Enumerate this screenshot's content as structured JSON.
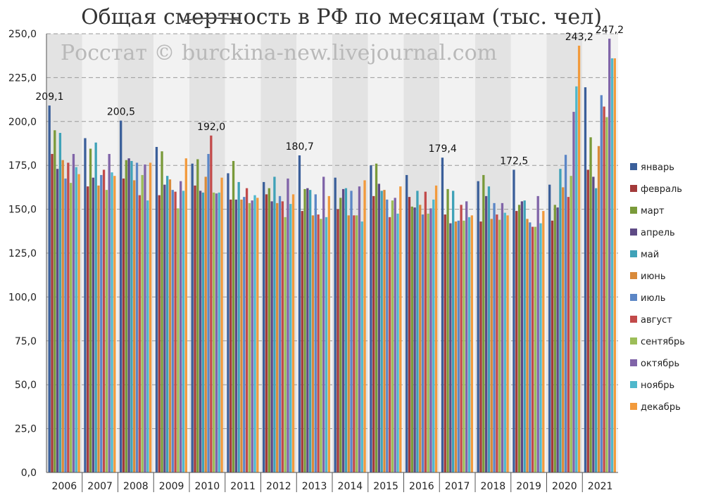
{
  "chart_data": {
    "type": "bar",
    "title": "Общая смертность в РФ по месяцам (тыс. чел)",
    "watermark": "Росстат © burckina-new.livejournal.com",
    "categories": [
      "2006",
      "2007",
      "2008",
      "2009",
      "2010",
      "2011",
      "2012",
      "2013",
      "2014",
      "2015",
      "2016",
      "2017",
      "2018",
      "2019",
      "2020",
      "2021"
    ],
    "ylim": [
      0,
      250
    ],
    "yticks": [
      "0,0",
      "25,0",
      "50,0",
      "75,0",
      "100,0",
      "125,0",
      "150,0",
      "175,0",
      "200,0",
      "225,0",
      "250,0"
    ],
    "grid": true,
    "legend_position": "right",
    "series": [
      {
        "name": "январь",
        "color": "#3b5f9a",
        "values": [
          209.1,
          190.5,
          200.5,
          185.5,
          176.0,
          170.5,
          165.5,
          180.7,
          168.0,
          175.0,
          169.5,
          179.4,
          166.0,
          172.5,
          164.0,
          219.5
        ]
      },
      {
        "name": "февраль",
        "color": "#a33a3a",
        "values": [
          181.5,
          163.0,
          167.5,
          158.0,
          163.5,
          155.5,
          158.5,
          149.0,
          150.0,
          157.5,
          157.0,
          147.0,
          143.0,
          149.0,
          143.5,
          172.5
        ]
      },
      {
        "name": "март",
        "color": "#7a9a3a",
        "values": [
          195.0,
          184.5,
          178.0,
          183.0,
          178.5,
          177.5,
          162.0,
          161.5,
          156.5,
          176.0,
          151.5,
          161.5,
          169.5,
          152.5,
          152.5,
          191.0
        ]
      },
      {
        "name": "апрель",
        "color": "#5e4a85",
        "values": [
          173.0,
          168.0,
          179.0,
          164.0,
          160.5,
          155.5,
          154.5,
          162.0,
          161.5,
          164.5,
          151.0,
          142.0,
          157.5,
          154.5,
          151.0,
          168.5
        ]
      },
      {
        "name": "май",
        "color": "#3fa2b8",
        "values": [
          193.5,
          188.0,
          177.5,
          169.0,
          159.5,
          165.5,
          168.5,
          161.0,
          162.0,
          160.5,
          160.5,
          160.5,
          163.0,
          155.0,
          173.0,
          162.0
        ]
      },
      {
        "name": "июнь",
        "color": "#d98a3a",
        "values": [
          178.0,
          163.5,
          166.5,
          167.0,
          168.5,
          155.5,
          153.5,
          146.5,
          146.5,
          161.0,
          152.5,
          143.0,
          144.5,
          144.5,
          162.5,
          186.0
        ]
      },
      {
        "name": "июль",
        "color": "#5b86c6",
        "values": [
          167.5,
          169.5,
          176.5,
          161.0,
          181.5,
          157.0,
          157.5,
          158.5,
          160.5,
          155.5,
          147.0,
          143.5,
          153.5,
          142.5,
          181.0,
          215.0
        ]
      },
      {
        "name": "август",
        "color": "#c24a4a",
        "values": [
          176.5,
          172.5,
          158.0,
          160.0,
          192.0,
          162.0,
          154.5,
          147.0,
          146.5,
          145.5,
          160.0,
          152.5,
          147.0,
          140.0,
          157.0,
          208.5
        ]
      },
      {
        "name": "сентябрь",
        "color": "#9cbd58",
        "values": [
          165.0,
          161.0,
          169.5,
          150.5,
          159.5,
          153.5,
          145.5,
          144.5,
          146.5,
          155.0,
          147.5,
          143.5,
          144.0,
          140.0,
          169.0,
          202.5
        ]
      },
      {
        "name": "октябрь",
        "color": "#8064a8",
        "values": [
          181.5,
          181.5,
          175.5,
          166.0,
          159.0,
          155.0,
          167.5,
          168.5,
          163.0,
          156.5,
          150.5,
          154.5,
          153.5,
          157.5,
          205.5,
          247.2
        ]
      },
      {
        "name": "ноябрь",
        "color": "#4fb8cc",
        "values": [
          174.0,
          171.0,
          155.0,
          160.5,
          159.5,
          158.0,
          153.0,
          145.5,
          143.0,
          147.5,
          155.5,
          145.5,
          148.0,
          142.0,
          220.0,
          236.0
        ]
      },
      {
        "name": "декабрь",
        "color": "#f29a3c",
        "values": [
          170.0,
          169.0,
          176.5,
          179.0,
          168.0,
          156.5,
          158.5,
          157.5,
          166.5,
          163.0,
          163.5,
          146.5,
          146.5,
          149.0,
          243.2,
          236.0
        ]
      }
    ],
    "annotations": [
      {
        "category": "2006",
        "series": "январь",
        "label": "209,1"
      },
      {
        "category": "2008",
        "series": "январь",
        "label": "200,5"
      },
      {
        "category": "2010",
        "series": "август",
        "label": "192,0"
      },
      {
        "category": "2013",
        "series": "январь",
        "label": "180,7"
      },
      {
        "category": "2017",
        "series": "январь",
        "label": "179,4"
      },
      {
        "category": "2019",
        "series": "январь",
        "label": "172,5"
      },
      {
        "category": "2020",
        "series": "декабрь",
        "label": "243,2"
      },
      {
        "category": "2021",
        "series": "октябрь",
        "label": "247,2"
      }
    ]
  }
}
